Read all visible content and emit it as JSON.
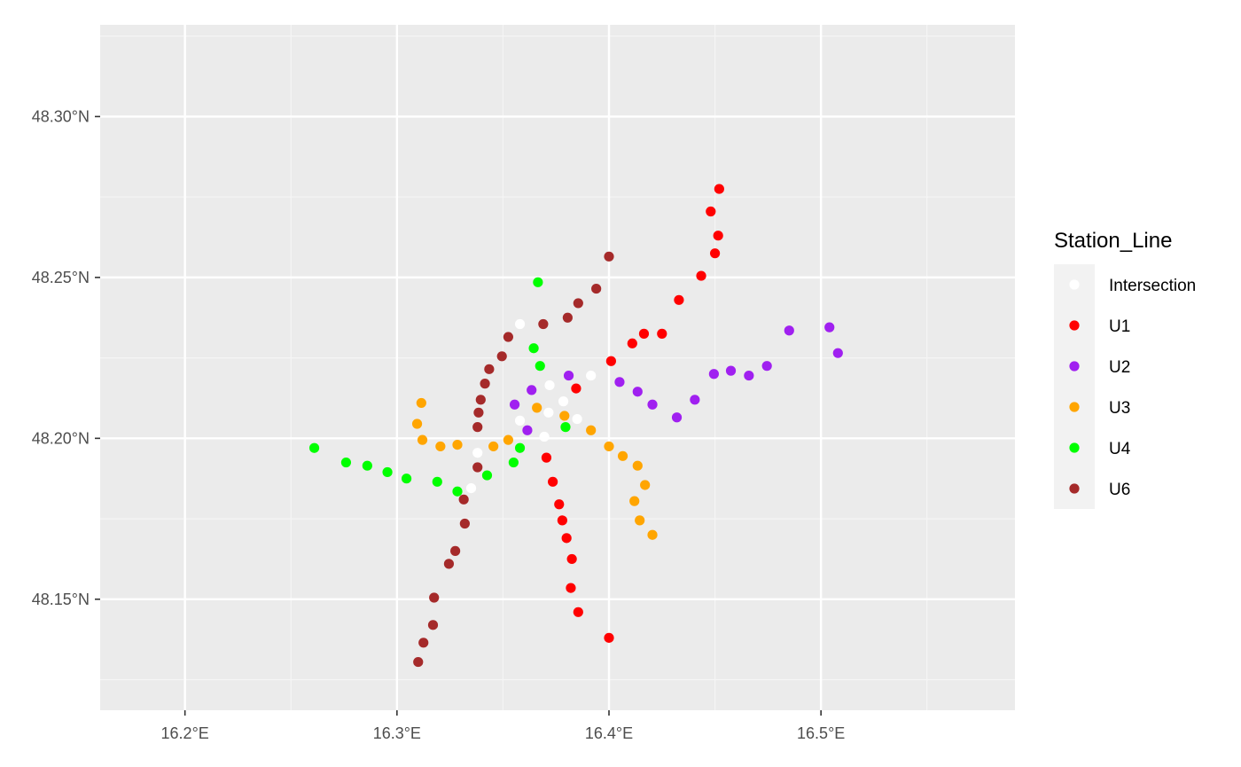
{
  "chart_data": {
    "type": "scatter",
    "title": "",
    "xlabel": "",
    "ylabel": "",
    "xlim": [
      16.16,
      16.5915
    ],
    "ylim": [
      48.1155,
      48.3285
    ],
    "grid": true,
    "x_ticks": [
      {
        "value": 16.2,
        "label": "16.2°E"
      },
      {
        "value": 16.3,
        "label": "16.3°E"
      },
      {
        "value": 16.4,
        "label": "16.4°E"
      },
      {
        "value": 16.5,
        "label": "16.5°E"
      }
    ],
    "y_ticks": [
      {
        "value": 48.15,
        "label": "48.15°N"
      },
      {
        "value": 48.2,
        "label": "48.20°N"
      },
      {
        "value": 48.25,
        "label": "48.25°N"
      },
      {
        "value": 48.3,
        "label": "48.30°N"
      }
    ],
    "legend": {
      "title": "Station_Line",
      "position": "right"
    },
    "series": [
      {
        "name": "Intersection",
        "color": "#FFFFFF",
        "points": [
          [
            16.358,
            48.2355
          ],
          [
            16.3915,
            48.2195
          ],
          [
            16.372,
            48.2165
          ],
          [
            16.3785,
            48.2115
          ],
          [
            16.3715,
            48.208
          ],
          [
            16.385,
            48.206
          ],
          [
            16.358,
            48.2055
          ],
          [
            16.3695,
            48.2005
          ],
          [
            16.338,
            48.1955
          ],
          [
            16.335,
            48.1845
          ]
        ]
      },
      {
        "name": "U1",
        "color": "#FF0000",
        "points": [
          [
            16.452,
            48.2775
          ],
          [
            16.448,
            48.2705
          ],
          [
            16.4515,
            48.263
          ],
          [
            16.45,
            48.2575
          ],
          [
            16.4435,
            48.2505
          ],
          [
            16.433,
            48.243
          ],
          [
            16.4165,
            48.2325
          ],
          [
            16.425,
            48.2325
          ],
          [
            16.411,
            48.2295
          ],
          [
            16.401,
            48.224
          ],
          [
            16.3845,
            48.2155
          ],
          [
            16.3705,
            48.194
          ],
          [
            16.3735,
            48.1865
          ],
          [
            16.3765,
            48.1795
          ],
          [
            16.378,
            48.1745
          ],
          [
            16.38,
            48.169
          ],
          [
            16.3825,
            48.1625
          ],
          [
            16.382,
            48.1535
          ],
          [
            16.3855,
            48.146
          ],
          [
            16.4,
            48.138
          ]
        ]
      },
      {
        "name": "U2",
        "color": "#A020F0",
        "points": [
          [
            16.504,
            48.2345
          ],
          [
            16.485,
            48.2335
          ],
          [
            16.508,
            48.2265
          ],
          [
            16.4745,
            48.2225
          ],
          [
            16.4575,
            48.221
          ],
          [
            16.4495,
            48.22
          ],
          [
            16.466,
            48.2195
          ],
          [
            16.381,
            48.2195
          ],
          [
            16.405,
            48.2175
          ],
          [
            16.3635,
            48.215
          ],
          [
            16.4135,
            48.2145
          ],
          [
            16.4405,
            48.212
          ],
          [
            16.3555,
            48.2105
          ],
          [
            16.4205,
            48.2105
          ],
          [
            16.432,
            48.2065
          ],
          [
            16.3615,
            48.2025
          ]
        ]
      },
      {
        "name": "U3",
        "color": "#FFA500",
        "points": [
          [
            16.3115,
            48.211
          ],
          [
            16.366,
            48.2095
          ],
          [
            16.379,
            48.207
          ],
          [
            16.3095,
            48.2045
          ],
          [
            16.3915,
            48.2025
          ],
          [
            16.312,
            48.1995
          ],
          [
            16.3525,
            48.1995
          ],
          [
            16.3285,
            48.198
          ],
          [
            16.3205,
            48.1975
          ],
          [
            16.3455,
            48.1975
          ],
          [
            16.4,
            48.1975
          ],
          [
            16.4065,
            48.1945
          ],
          [
            16.4135,
            48.1915
          ],
          [
            16.417,
            48.1855
          ],
          [
            16.412,
            48.1805
          ],
          [
            16.4145,
            48.1745
          ],
          [
            16.4205,
            48.17
          ]
        ]
      },
      {
        "name": "U4",
        "color": "#00FF00",
        "points": [
          [
            16.3665,
            48.2485
          ],
          [
            16.3645,
            48.228
          ],
          [
            16.3675,
            48.2225
          ],
          [
            16.3795,
            48.2035
          ],
          [
            16.261,
            48.197
          ],
          [
            16.358,
            48.197
          ],
          [
            16.276,
            48.1925
          ],
          [
            16.355,
            48.1925
          ],
          [
            16.286,
            48.1915
          ],
          [
            16.2955,
            48.1895
          ],
          [
            16.3425,
            48.1885
          ],
          [
            16.3045,
            48.1875
          ],
          [
            16.319,
            48.1865
          ],
          [
            16.3285,
            48.1835
          ]
        ]
      },
      {
        "name": "U6",
        "color": "#A52A2A",
        "points": [
          [
            16.4,
            48.2565
          ],
          [
            16.394,
            48.2465
          ],
          [
            16.3855,
            48.242
          ],
          [
            16.3805,
            48.2375
          ],
          [
            16.369,
            48.2355
          ],
          [
            16.3525,
            48.2315
          ],
          [
            16.3495,
            48.2255
          ],
          [
            16.3435,
            48.2215
          ],
          [
            16.3415,
            48.217
          ],
          [
            16.3395,
            48.212
          ],
          [
            16.3385,
            48.208
          ],
          [
            16.338,
            48.2035
          ],
          [
            16.338,
            48.191
          ],
          [
            16.3315,
            48.181
          ],
          [
            16.332,
            48.1735
          ],
          [
            16.3275,
            48.165
          ],
          [
            16.3245,
            48.161
          ],
          [
            16.3175,
            48.1505
          ],
          [
            16.317,
            48.142
          ],
          [
            16.3125,
            48.1365
          ],
          [
            16.31,
            48.1305
          ]
        ]
      }
    ]
  }
}
